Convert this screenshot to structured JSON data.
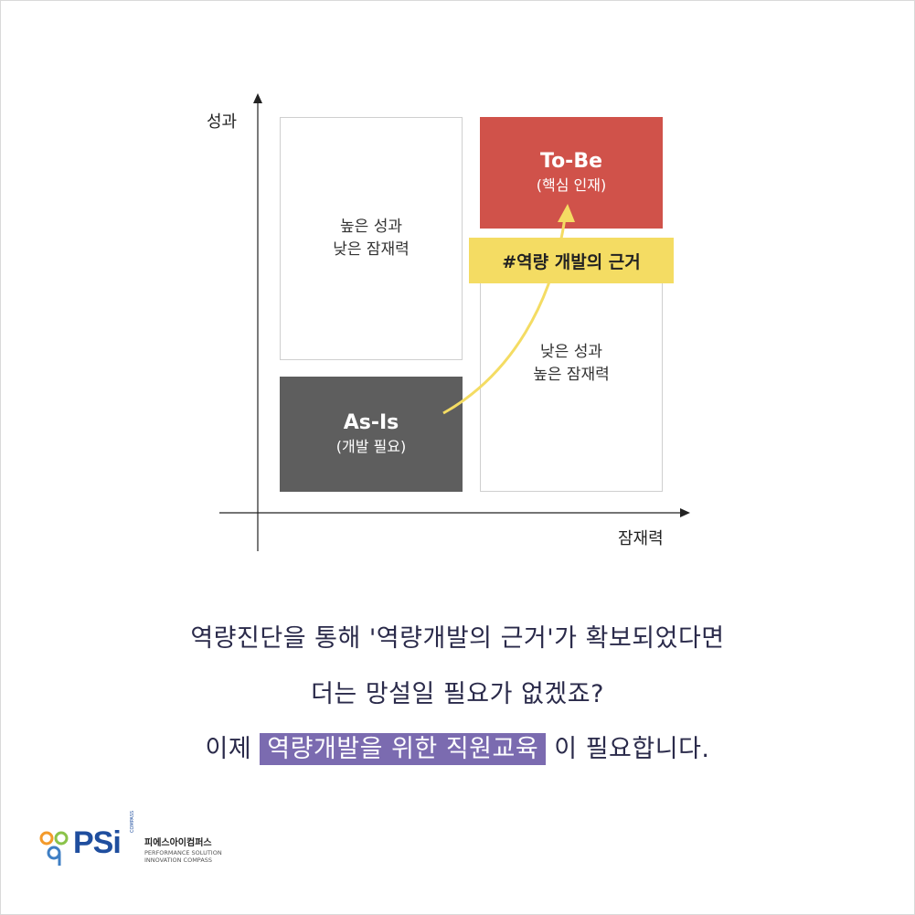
{
  "diagram": {
    "y_axis_label": "성과",
    "x_axis_label": "잠재력",
    "quadrants": {
      "top_left": {
        "line1": "높은 성과",
        "line2": "낮은 잠재력"
      },
      "top_right": {
        "title": "To-Be",
        "subtitle": "(핵심 인재)",
        "color": "#d0524a"
      },
      "bottom_left": {
        "title": "As-Is",
        "subtitle": "(개발 필요)",
        "color": "#5e5e5e"
      },
      "bottom_right": {
        "line1": "낮은 성과",
        "line2": "높은 잠재력"
      }
    },
    "tag": {
      "text": "#역량 개발의 근거",
      "color": "#f4dc63"
    },
    "arrow_color": "#f4dc63"
  },
  "message": {
    "line1": "역량진단을 통해 '역량개발의 근거'가 확보되었다면",
    "line2": "더는 망설일 필요가 없겠죠?",
    "line3_before": "이제",
    "line3_highlight": "역량개발을 위한 직원교육",
    "line3_after": "이 필요합니다.",
    "highlight_color": "#7b6bb0"
  },
  "logo": {
    "brand": "PSi",
    "compass": "COMPASS",
    "korean_name": "피에스아이컴퍼스",
    "tagline1": "PERFORMANCE SOLUTION",
    "tagline2": "INNOVATION COMPASS"
  }
}
